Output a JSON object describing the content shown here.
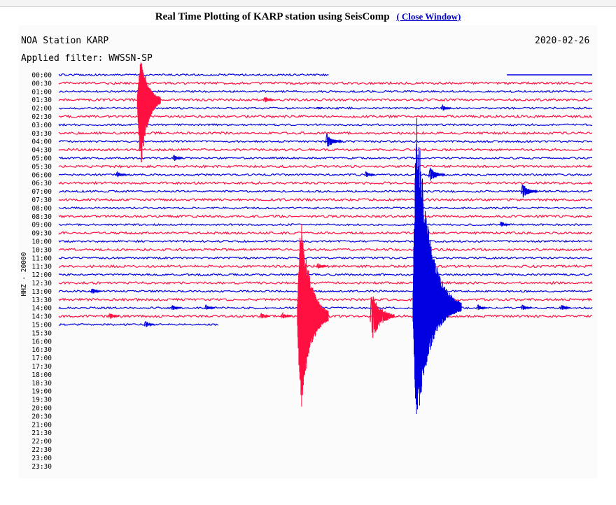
{
  "header": {
    "title": "Real Time Plotting of KARP station using SeisComp",
    "close_link": "( Close Window)"
  },
  "plot": {
    "station_title": "NOA Station KARP",
    "filter_label": "Applied filter: WWSSN-SP",
    "date": "2020-02-26",
    "channel_label": "HHZ - 20000"
  },
  "colors": {
    "blue": "#0000e0",
    "red": "#ff1040"
  },
  "chart_data": {
    "type": "line",
    "title": "NOA Station KARP",
    "subtitle": "Applied filter: WWSSN-SP",
    "date": "2020-02-26",
    "ylabel": "HHZ - 20000",
    "y_tick_labels": [
      "00:00",
      "00:30",
      "01:00",
      "01:30",
      "02:00",
      "02:30",
      "03:00",
      "03:30",
      "04:00",
      "04:30",
      "05:00",
      "05:30",
      "06:00",
      "06:30",
      "07:00",
      "07:30",
      "08:00",
      "08:30",
      "09:00",
      "09:30",
      "10:00",
      "10:30",
      "11:00",
      "11:30",
      "12:00",
      "12:30",
      "13:00",
      "13:30",
      "14:00",
      "14:30",
      "15:00",
      "15:30",
      "16:00",
      "16:30",
      "17:00",
      "17:30",
      "18:00",
      "18:30",
      "19:00",
      "19:30",
      "20:00",
      "20:30",
      "21:00",
      "21:30",
      "22:00",
      "22:30",
      "23:00",
      "23:30"
    ],
    "x_range_minutes": [
      0,
      30
    ],
    "row_colors": "alternating blue/red",
    "traces": [
      {
        "row": "00:00",
        "color": "blue",
        "data_end_min": 15.2,
        "gap": [
          15.2,
          25.2
        ]
      },
      {
        "row": "00:30",
        "color": "red"
      },
      {
        "row": "01:00",
        "color": "blue"
      },
      {
        "row": "01:30",
        "color": "red",
        "events": [
          {
            "t": 4.4,
            "amp": "very large"
          },
          {
            "t": 11.5,
            "amp": "small"
          }
        ]
      },
      {
        "row": "02:00",
        "color": "blue",
        "events": [
          {
            "t": 14.5,
            "amp": "tiny"
          },
          {
            "t": 21.5,
            "amp": "small"
          }
        ]
      },
      {
        "row": "02:30",
        "color": "red"
      },
      {
        "row": "03:00",
        "color": "blue"
      },
      {
        "row": "03:30",
        "color": "red"
      },
      {
        "row": "04:00",
        "color": "blue",
        "events": [
          {
            "t": 15.0,
            "amp": "medium"
          }
        ]
      },
      {
        "row": "04:30",
        "color": "red"
      },
      {
        "row": "05:00",
        "color": "blue",
        "events": [
          {
            "t": 6.4,
            "amp": "small"
          }
        ]
      },
      {
        "row": "05:30",
        "color": "red"
      },
      {
        "row": "06:00",
        "color": "blue",
        "events": [
          {
            "t": 3.2,
            "amp": "small"
          },
          {
            "t": 17.2,
            "amp": "small"
          },
          {
            "t": 20.8,
            "amp": "medium"
          }
        ]
      },
      {
        "row": "06:30",
        "color": "red"
      },
      {
        "row": "07:00",
        "color": "blue",
        "events": [
          {
            "t": 26.0,
            "amp": "medium"
          }
        ]
      },
      {
        "row": "07:30",
        "color": "red"
      },
      {
        "row": "08:00",
        "color": "blue"
      },
      {
        "row": "08:30",
        "color": "red"
      },
      {
        "row": "09:00",
        "color": "blue",
        "events": [
          {
            "t": 24.8,
            "amp": "small"
          }
        ]
      },
      {
        "row": "09:30",
        "color": "red"
      },
      {
        "row": "10:00",
        "color": "blue"
      },
      {
        "row": "10:30",
        "color": "red"
      },
      {
        "row": "11:00",
        "color": "blue"
      },
      {
        "row": "11:30",
        "color": "red",
        "events": [
          {
            "t": 14.5,
            "amp": "small"
          }
        ]
      },
      {
        "row": "12:00",
        "color": "blue"
      },
      {
        "row": "12:30",
        "color": "red"
      },
      {
        "row": "13:00",
        "color": "blue",
        "events": [
          {
            "t": 1.8,
            "amp": "small"
          }
        ]
      },
      {
        "row": "13:30",
        "color": "red"
      },
      {
        "row": "14:00",
        "color": "blue",
        "events": [
          {
            "t": 6.3,
            "amp": "small"
          },
          {
            "t": 8.2,
            "amp": "small"
          },
          {
            "t": 19.9,
            "amp": "very large"
          },
          {
            "t": 23.5,
            "amp": "small"
          },
          {
            "t": 26.0,
            "amp": "small"
          },
          {
            "t": 28.2,
            "amp": "small"
          }
        ]
      },
      {
        "row": "14:30",
        "color": "red",
        "events": [
          {
            "t": 2.8,
            "amp": "small"
          },
          {
            "t": 11.3,
            "amp": "small"
          },
          {
            "t": 12.5,
            "amp": "small"
          },
          {
            "t": 13.4,
            "amp": "very large"
          },
          {
            "t": 17.5,
            "amp": "large"
          }
        ]
      },
      {
        "row": "15:00",
        "color": "blue",
        "events": [
          {
            "t": 4.8,
            "amp": "small"
          }
        ],
        "data_end_min": 9.0
      }
    ]
  }
}
